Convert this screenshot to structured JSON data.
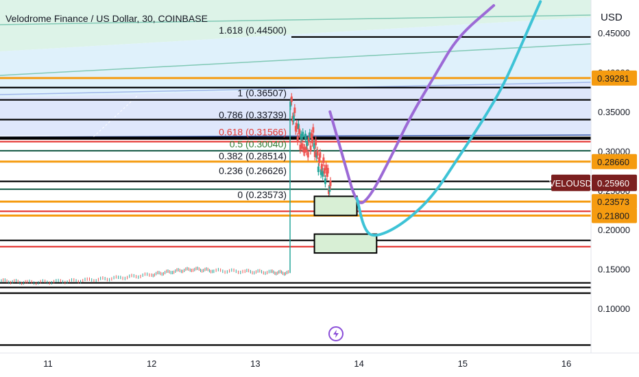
{
  "chart_data": {
    "type": "line",
    "title": "Velodrome Finance / US Dollar, 30, COINBASE",
    "symbol": "VELOUSD",
    "currency": "USD",
    "x_ticks": [
      "11",
      "12",
      "13",
      "14",
      "15",
      "16"
    ],
    "y_ticks": [
      "0.10000",
      "0.15000",
      "0.20000",
      "0.25000",
      "0.30000",
      "0.35000",
      "0.40000",
      "0.45000"
    ],
    "ylim": [
      0.045,
      0.49
    ],
    "xlim": [
      10.55,
      16.25
    ],
    "current_price": {
      "label": "VELOUSD",
      "value": "0.25960",
      "color": "#7b1f1f"
    },
    "price_tags": [
      {
        "value": "0.39281",
        "color": "#f59b10"
      },
      {
        "value": "0.28660",
        "color": "#f59b10"
      },
      {
        "value": "0.23573",
        "color": "#f59b10"
      },
      {
        "value": "0.21800",
        "color": "#f59b10"
      }
    ],
    "fib_levels": [
      {
        "ratio": "1.618",
        "price": 0.445,
        "label": "1.618 (0.44500)",
        "color": "#131722"
      },
      {
        "ratio": "1",
        "price": 0.36507,
        "label": "1 (0.36507)",
        "color": "#131722"
      },
      {
        "ratio": "0.786",
        "price": 0.33739,
        "label": "0.786 (0.33739)",
        "color": "#131722"
      },
      {
        "ratio": "0.618",
        "price": 0.31566,
        "label": "0.618 (0.31566)",
        "color": "#e53935"
      },
      {
        "ratio": "0.5",
        "price": 0.3004,
        "label": "0.5 (0.30040)",
        "color": "#2e7d32"
      },
      {
        "ratio": "0.382",
        "price": 0.28514,
        "label": "0.382 (0.28514)",
        "color": "#131722"
      },
      {
        "ratio": "0.236",
        "price": 0.26626,
        "label": "0.236 (0.26626)",
        "color": "#131722"
      },
      {
        "ratio": "0",
        "price": 0.23573,
        "label": "0 (0.23573)",
        "color": "#131722"
      }
    ],
    "horizontal_lines": [
      {
        "price": 0.445,
        "color": "#000000"
      },
      {
        "price": 0.39281,
        "color": "#f59b10"
      },
      {
        "price": 0.3807,
        "color": "#000000"
      },
      {
        "price": 0.36507,
        "color": "#000000"
      },
      {
        "price": 0.34,
        "color": "#000000"
      },
      {
        "price": 0.3174,
        "color": "#000000"
      },
      {
        "price": 0.3155,
        "color": "#000000"
      },
      {
        "price": 0.312,
        "color": "#e53935"
      },
      {
        "price": 0.3004,
        "color": "#1b5e4a"
      },
      {
        "price": 0.2866,
        "color": "#f59b10"
      },
      {
        "price": 0.2615,
        "color": "#000000"
      },
      {
        "price": 0.2515,
        "color": "#1b5e4a"
      },
      {
        "price": 0.23573,
        "color": "#f59b10"
      },
      {
        "price": 0.2235,
        "color": "#e53935"
      },
      {
        "price": 0.218,
        "color": "#f59b10"
      },
      {
        "price": 0.1865,
        "color": "#000000"
      },
      {
        "price": 0.1785,
        "color": "#e53935"
      },
      {
        "price": 0.1325,
        "color": "#000000"
      },
      {
        "price": 0.1267,
        "color": "#000000"
      },
      {
        "price": 0.1195,
        "color": "#000000"
      },
      {
        "price": 0.0535,
        "color": "#000000"
      }
    ],
    "candles_summary": {
      "before_spike": [
        [
          10.55,
          0.135
        ],
        [
          10.8,
          0.133
        ],
        [
          11.1,
          0.134
        ],
        [
          11.4,
          0.136
        ],
        [
          11.7,
          0.139
        ],
        [
          12.0,
          0.143
        ],
        [
          12.2,
          0.147
        ],
        [
          12.4,
          0.15
        ],
        [
          12.6,
          0.148
        ],
        [
          12.9,
          0.147
        ],
        [
          13.15,
          0.146
        ],
        [
          13.33,
          0.145
        ]
      ],
      "spike": [
        [
          13.34,
          0.36
        ],
        [
          13.4,
          0.33
        ],
        [
          13.45,
          0.31
        ],
        [
          13.5,
          0.305
        ],
        [
          13.55,
          0.32
        ],
        [
          13.6,
          0.29
        ],
        [
          13.65,
          0.28
        ],
        [
          13.7,
          0.265
        ],
        [
          13.75,
          0.23
        ]
      ]
    },
    "projection_purple": [
      [
        13.72,
        0.35
      ],
      [
        13.85,
        0.29
      ],
      [
        13.98,
        0.23
      ],
      [
        14.1,
        0.24
      ],
      [
        14.3,
        0.29
      ],
      [
        14.5,
        0.345
      ],
      [
        14.75,
        0.4
      ],
      [
        14.95,
        0.445
      ],
      [
        15.3,
        0.485
      ]
    ],
    "projection_cyan": [
      [
        13.98,
        0.24
      ],
      [
        14.05,
        0.2
      ],
      [
        14.15,
        0.19
      ],
      [
        14.4,
        0.205
      ],
      [
        14.7,
        0.24
      ],
      [
        14.95,
        0.29
      ],
      [
        15.2,
        0.34
      ],
      [
        15.4,
        0.385
      ],
      [
        15.6,
        0.445
      ],
      [
        15.75,
        0.49
      ]
    ],
    "boxes": [
      {
        "x0": 13.57,
        "x1": 13.98,
        "y0": 0.2182,
        "y1": 0.2425
      },
      {
        "x0": 13.57,
        "x1": 14.17,
        "y0": 0.1705,
        "y1": 0.1945
      }
    ]
  },
  "ui": {
    "bolt_icon_name": "lightning-icon"
  }
}
